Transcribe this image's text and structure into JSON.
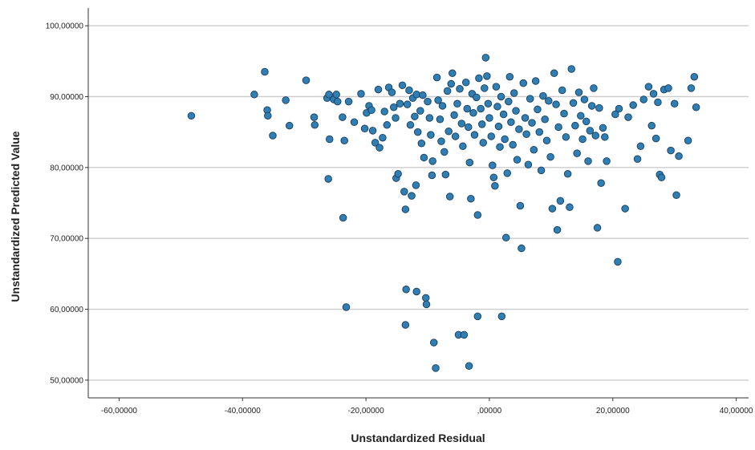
{
  "chart_data": {
    "type": "scatter",
    "title": "",
    "xlabel": "Unstandardized Residual",
    "ylabel": "Unstandardized Predicted Value",
    "xlim": [
      -65,
      42
    ],
    "ylim": [
      47.5,
      102.5
    ],
    "x_ticks": [
      -60,
      -40,
      -20,
      0,
      20,
      40
    ],
    "x_tick_labels": [
      "-60,00000",
      "-40,00000",
      "-20,00000",
      ",00000",
      "20,00000",
      "40,00000"
    ],
    "y_ticks": [
      50,
      60,
      70,
      80,
      90,
      100
    ],
    "y_tick_labels": [
      "50,00000",
      "60,00000",
      "70,00000",
      "80,00000",
      "90,00000",
      "100,00000"
    ],
    "grid": "horizontal",
    "legend": "none",
    "marker_color": "#2f7fb5",
    "marker_edge": "#1a3d5c",
    "gridline_color": "#cccccc",
    "points": [
      [
        -48.3,
        87.3
      ],
      [
        -38.1,
        90.3
      ],
      [
        -36.4,
        93.5
      ],
      [
        -36.0,
        88.1
      ],
      [
        -35.9,
        87.3
      ],
      [
        -35.1,
        84.5
      ],
      [
        -33.0,
        89.5
      ],
      [
        -32.4,
        85.9
      ],
      [
        -29.7,
        92.3
      ],
      [
        -28.4,
        87.1
      ],
      [
        -28.3,
        86.0
      ],
      [
        -26.3,
        89.8
      ],
      [
        -26.0,
        90.3
      ],
      [
        -25.9,
        84.0
      ],
      [
        -26.1,
        78.4
      ],
      [
        -25.2,
        89.6
      ],
      [
        -24.8,
        90.3
      ],
      [
        -24.6,
        89.3
      ],
      [
        -23.8,
        87.1
      ],
      [
        -23.5,
        83.8
      ],
      [
        -23.7,
        72.9
      ],
      [
        -23.2,
        60.3
      ],
      [
        -22.8,
        89.3
      ],
      [
        -21.9,
        86.4
      ],
      [
        -20.8,
        90.4
      ],
      [
        -20.2,
        85.5
      ],
      [
        -19.9,
        87.7
      ],
      [
        -19.5,
        88.7
      ],
      [
        -19.1,
        88.1
      ],
      [
        -18.9,
        85.2
      ],
      [
        -18.5,
        83.5
      ],
      [
        -18.0,
        91.0
      ],
      [
        -17.8,
        82.8
      ],
      [
        -17.3,
        84.2
      ],
      [
        -17.0,
        87.9
      ],
      [
        -16.6,
        86.0
      ],
      [
        -16.3,
        91.3
      ],
      [
        -15.8,
        90.6
      ],
      [
        -15.5,
        88.5
      ],
      [
        -15.2,
        87.0
      ],
      [
        -15.1,
        78.5
      ],
      [
        -14.8,
        79.1
      ],
      [
        -14.5,
        89.0
      ],
      [
        -14.1,
        91.6
      ],
      [
        -13.8,
        76.6
      ],
      [
        -13.6,
        74.1
      ],
      [
        -13.5,
        62.8
      ],
      [
        -13.6,
        57.8
      ],
      [
        -13.3,
        88.9
      ],
      [
        -13.0,
        90.9
      ],
      [
        -12.8,
        86.0
      ],
      [
        -12.6,
        76.0
      ],
      [
        -12.4,
        89.8
      ],
      [
        -12.1,
        87.2
      ],
      [
        -11.8,
        90.3
      ],
      [
        -11.6,
        85.0
      ],
      [
        -11.9,
        77.5
      ],
      [
        -11.8,
        62.5
      ],
      [
        -11.2,
        88.0
      ],
      [
        -11.0,
        83.4
      ],
      [
        -10.8,
        90.2
      ],
      [
        -10.6,
        81.4
      ],
      [
        -10.3,
        61.6
      ],
      [
        -10.2,
        60.7
      ],
      [
        -10.0,
        89.3
      ],
      [
        -9.7,
        87.0
      ],
      [
        -9.5,
        84.6
      ],
      [
        -9.2,
        80.9
      ],
      [
        -9.3,
        78.9
      ],
      [
        -9.0,
        55.3
      ],
      [
        -8.7,
        51.7
      ],
      [
        -8.5,
        92.7
      ],
      [
        -8.3,
        89.5
      ],
      [
        -8.0,
        86.8
      ],
      [
        -7.8,
        83.7
      ],
      [
        -7.6,
        88.7
      ],
      [
        -7.3,
        82.2
      ],
      [
        -7.1,
        79.0
      ],
      [
        -6.8,
        90.8
      ],
      [
        -6.6,
        85.1
      ],
      [
        -6.4,
        75.9
      ],
      [
        -6.2,
        91.8
      ],
      [
        -6.0,
        93.3
      ],
      [
        -5.7,
        87.4
      ],
      [
        -5.5,
        84.4
      ],
      [
        -5.2,
        89.0
      ],
      [
        -5.0,
        56.4
      ],
      [
        -4.8,
        91.1
      ],
      [
        -4.5,
        86.2
      ],
      [
        -4.3,
        83.0
      ],
      [
        -4.1,
        56.4
      ],
      [
        -3.8,
        92.0
      ],
      [
        -3.6,
        88.3
      ],
      [
        -3.4,
        85.7
      ],
      [
        -3.2,
        80.7
      ],
      [
        -3.0,
        75.6
      ],
      [
        -3.3,
        52.0
      ],
      [
        -2.8,
        90.4
      ],
      [
        -2.6,
        87.7
      ],
      [
        -2.4,
        84.6
      ],
      [
        -2.1,
        89.9
      ],
      [
        -1.9,
        73.3
      ],
      [
        -1.7,
        92.6
      ],
      [
        -1.9,
        59.0
      ],
      [
        -1.4,
        88.3
      ],
      [
        -1.2,
        86.1
      ],
      [
        -1.0,
        83.5
      ],
      [
        -0.8,
        91.2
      ],
      [
        -0.6,
        95.5
      ],
      [
        -0.4,
        92.9
      ],
      [
        -0.2,
        89.0
      ],
      [
        0.0,
        87.0
      ],
      [
        0.3,
        84.4
      ],
      [
        0.5,
        80.3
      ],
      [
        0.7,
        78.6
      ],
      [
        0.9,
        77.4
      ],
      [
        1.1,
        91.4
      ],
      [
        1.3,
        88.6
      ],
      [
        1.5,
        85.8
      ],
      [
        1.7,
        82.9
      ],
      [
        1.9,
        90.0
      ],
      [
        2.0,
        59.0
      ],
      [
        2.3,
        87.5
      ],
      [
        2.5,
        84.0
      ],
      [
        2.7,
        70.1
      ],
      [
        2.9,
        79.2
      ],
      [
        3.1,
        89.3
      ],
      [
        3.3,
        92.8
      ],
      [
        3.5,
        86.4
      ],
      [
        3.8,
        83.2
      ],
      [
        4.0,
        90.5
      ],
      [
        4.3,
        88.0
      ],
      [
        4.5,
        81.1
      ],
      [
        4.8,
        85.4
      ],
      [
        5.0,
        74.6
      ],
      [
        5.2,
        68.6
      ],
      [
        5.5,
        91.9
      ],
      [
        5.8,
        87.0
      ],
      [
        6.0,
        84.7
      ],
      [
        6.3,
        80.4
      ],
      [
        6.6,
        89.7
      ],
      [
        6.9,
        86.3
      ],
      [
        7.2,
        82.5
      ],
      [
        7.5,
        92.2
      ],
      [
        7.8,
        88.2
      ],
      [
        8.1,
        85.0
      ],
      [
        8.4,
        79.6
      ],
      [
        8.7,
        90.1
      ],
      [
        9.0,
        86.8
      ],
      [
        9.3,
        83.8
      ],
      [
        9.6,
        89.4
      ],
      [
        9.9,
        81.5
      ],
      [
        10.2,
        74.2
      ],
      [
        10.5,
        93.3
      ],
      [
        10.8,
        88.9
      ],
      [
        11.0,
        71.2
      ],
      [
        11.2,
        85.7
      ],
      [
        11.5,
        75.3
      ],
      [
        11.8,
        90.9
      ],
      [
        12.1,
        87.6
      ],
      [
        12.4,
        84.3
      ],
      [
        12.7,
        79.1
      ],
      [
        13.0,
        74.4
      ],
      [
        13.3,
        93.9
      ],
      [
        13.6,
        89.1
      ],
      [
        13.9,
        85.9
      ],
      [
        14.2,
        82.0
      ],
      [
        14.5,
        90.6
      ],
      [
        14.8,
        87.3
      ],
      [
        15.1,
        84.0
      ],
      [
        15.4,
        89.6
      ],
      [
        15.7,
        86.5
      ],
      [
        16.0,
        80.9
      ],
      [
        16.3,
        85.2
      ],
      [
        16.6,
        88.7
      ],
      [
        16.9,
        91.2
      ],
      [
        17.2,
        84.5
      ],
      [
        17.5,
        71.5
      ],
      [
        17.8,
        88.4
      ],
      [
        18.1,
        77.8
      ],
      [
        18.4,
        85.6
      ],
      [
        18.7,
        84.3
      ],
      [
        19.0,
        80.9
      ],
      [
        20.4,
        87.5
      ],
      [
        20.8,
        66.7
      ],
      [
        21.0,
        88.3
      ],
      [
        22.0,
        74.2
      ],
      [
        22.5,
        87.1
      ],
      [
        23.3,
        88.8
      ],
      [
        24.0,
        81.2
      ],
      [
        24.5,
        83.0
      ],
      [
        25.0,
        89.6
      ],
      [
        25.8,
        91.4
      ],
      [
        26.3,
        85.9
      ],
      [
        26.6,
        90.4
      ],
      [
        27.0,
        84.1
      ],
      [
        27.3,
        89.2
      ],
      [
        27.6,
        79.0
      ],
      [
        27.9,
        78.6
      ],
      [
        28.3,
        91.0
      ],
      [
        29.0,
        91.2
      ],
      [
        29.4,
        82.4
      ],
      [
        30.0,
        89.0
      ],
      [
        30.3,
        76.1
      ],
      [
        30.7,
        81.6
      ],
      [
        32.2,
        83.8
      ],
      [
        32.7,
        91.2
      ],
      [
        33.2,
        92.8
      ],
      [
        33.5,
        88.5
      ]
    ]
  }
}
